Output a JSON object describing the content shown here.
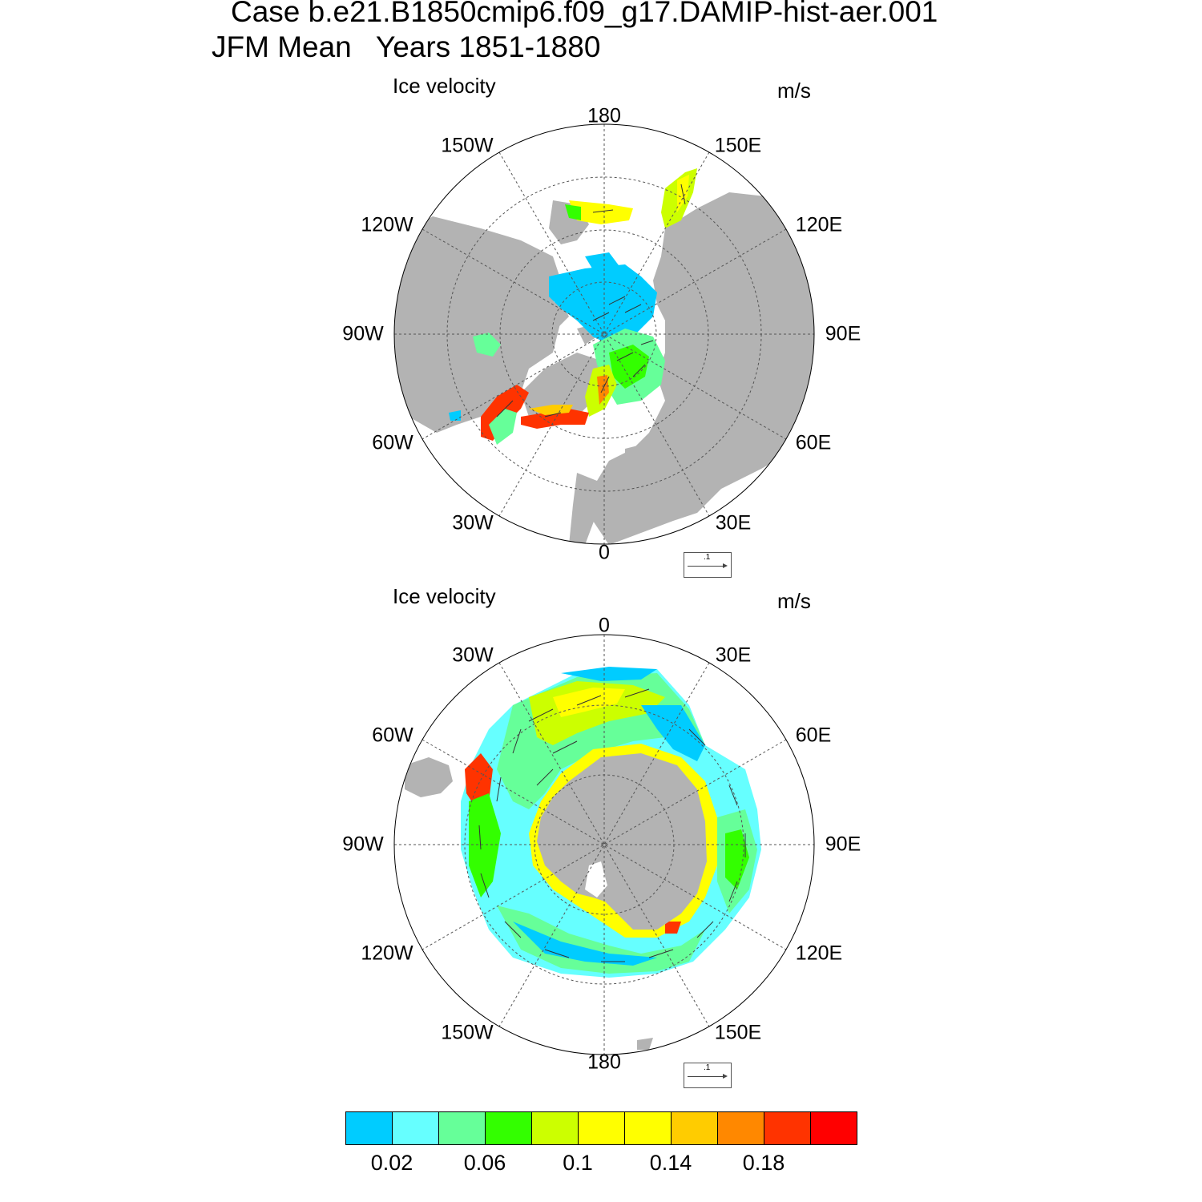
{
  "title": {
    "case_line": "Case b.e21.B1850cmip6.f09_g17.DAMIP-hist-aer.001",
    "period_line": "JFM Mean   Years 1851-1880"
  },
  "panels": [
    {
      "name": "north",
      "hemisphere": "Arctic",
      "label": "Ice velocity",
      "units": "m/s",
      "lon_labels": [
        "180",
        "150E",
        "120E",
        "90E",
        "60E",
        "30E",
        "0",
        "30W",
        "60W",
        "90W",
        "120W",
        "150W"
      ],
      "reference_vector_label": ".1"
    },
    {
      "name": "south",
      "hemisphere": "Antarctic",
      "label": "Ice velocity",
      "units": "m/s",
      "lon_labels": [
        "0",
        "30E",
        "60E",
        "90E",
        "120E",
        "150E",
        "180",
        "150W",
        "120W",
        "90W",
        "60W",
        "30W"
      ],
      "reference_vector_label": ".1"
    }
  ],
  "colorbar": {
    "colors": [
      "#00ccff",
      "#66ffff",
      "#66ff99",
      "#33ff00",
      "#ccff00",
      "#ffff00",
      "#ffff00",
      "#ffcc00",
      "#ff8800",
      "#ff3300",
      "#ff0000"
    ],
    "tick_labels": [
      "0.02",
      "0.06",
      "0.1",
      "0.14",
      "0.18"
    ]
  },
  "colors": {
    "land": "#b3b3b3",
    "ocean": "#ffffff",
    "grid": "#555555"
  }
}
